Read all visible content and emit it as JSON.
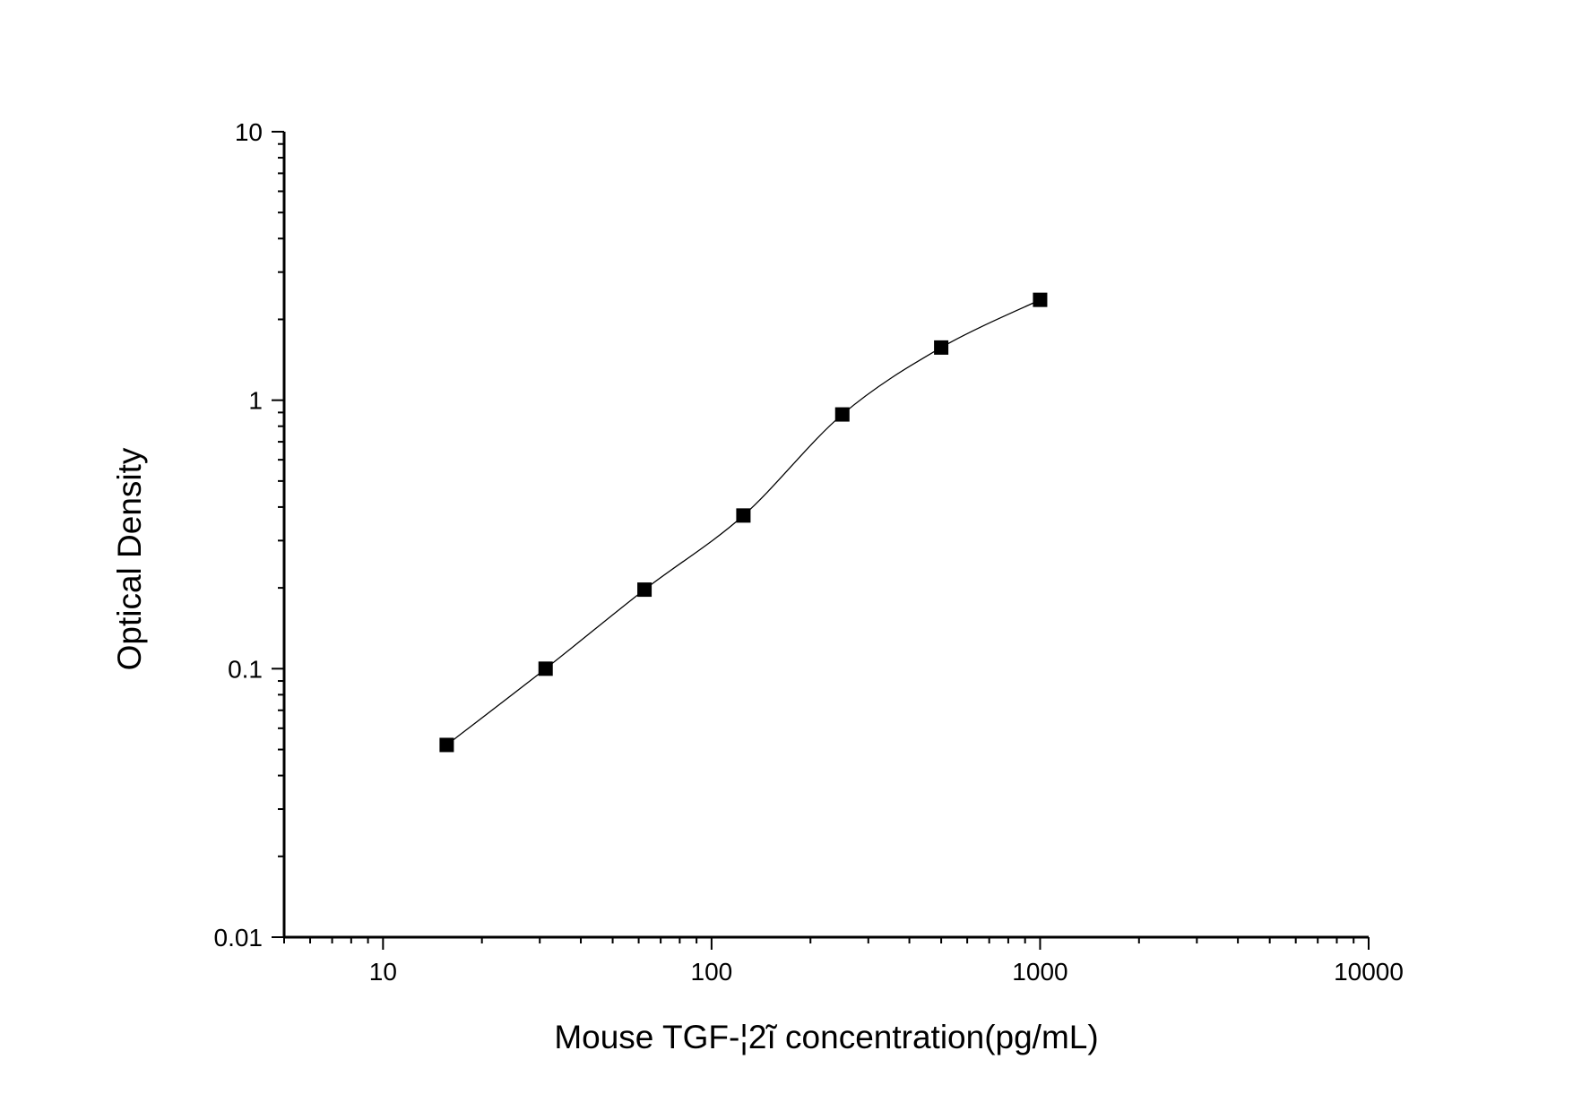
{
  "chart_data": {
    "type": "scatter",
    "title": "",
    "xlabel": "Mouse TGF-¦2ĩ concentration(pg/mL)",
    "ylabel": "Optical Density",
    "xscale": "log",
    "yscale": "log",
    "xlim": [
      5,
      10000
    ],
    "ylim": [
      0.01,
      10
    ],
    "grid": false,
    "x_ticks": [
      10,
      100,
      1000,
      10000
    ],
    "x_tick_labels": [
      "10",
      "100",
      "1000",
      "10000"
    ],
    "y_ticks": [
      0.01,
      0.1,
      1,
      10
    ],
    "y_tick_labels": [
      "0.01",
      "0.1",
      "1",
      "10"
    ],
    "series": [
      {
        "marker": "square",
        "fit_line": true,
        "color": "#000000",
        "x": [
          15.625,
          31.25,
          62.5,
          125,
          250,
          500,
          1000
        ],
        "y": [
          0.052,
          0.1,
          0.197,
          0.372,
          0.885,
          1.571,
          2.365
        ]
      }
    ]
  }
}
